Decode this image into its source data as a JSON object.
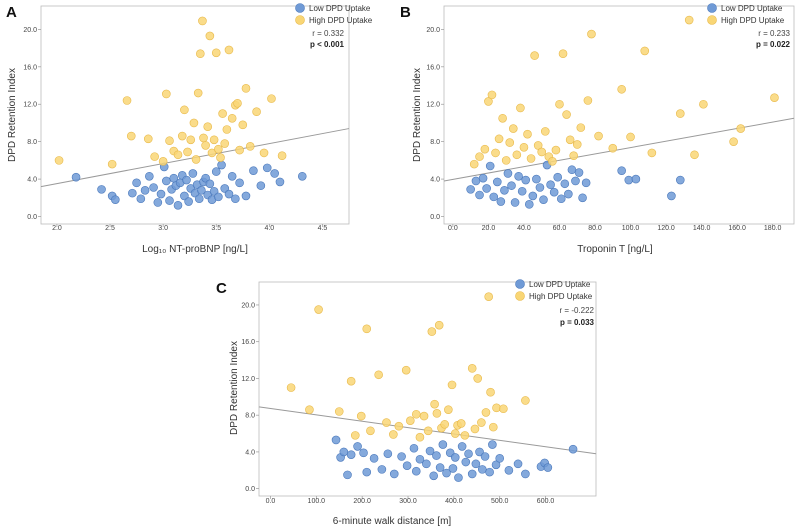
{
  "colors": {
    "low": "#6f9ad6",
    "low_stroke": "#4a78bb",
    "high": "#f9d675",
    "high_stroke": "#e8b94a",
    "regression": "#9a9a9a"
  },
  "chart_data": [
    {
      "type": "scatter",
      "panel_label": "A",
      "xlabel": "Log₁₀ NT-proBNP [ng/L]",
      "ylabel": "DPD Retention Index",
      "xlim": [
        1.85,
        4.75
      ],
      "ylim": [
        -0.8,
        22.5
      ],
      "xticks": [
        2.0,
        2.5,
        3.0,
        3.5,
        4.0,
        4.5
      ],
      "xtick_labels": [
        "2.0",
        "2.5",
        "3.0",
        "3.5",
        "4.0",
        "4.5"
      ],
      "yticks": [
        0,
        4,
        8,
        12,
        16,
        20
      ],
      "ytick_labels": [
        "0.0",
        "4.0",
        "8.0",
        "12.0",
        "16.0",
        "20.0"
      ],
      "legend": [
        "Low  DPD Uptake",
        "High DPD Uptake"
      ],
      "stats": {
        "r": "r = 0.332",
        "p": "p < 0.001"
      },
      "regression": {
        "x": [
          1.85,
          4.75
        ],
        "y": [
          3.2,
          9.4
        ]
      },
      "series": [
        {
          "name": "Low  DPD Uptake",
          "x": [
            2.18,
            2.42,
            2.52,
            2.55,
            2.71,
            2.75,
            2.79,
            2.83,
            2.87,
            2.91,
            2.95,
            2.98,
            3.01,
            3.03,
            3.06,
            3.08,
            3.1,
            3.12,
            3.14,
            3.16,
            3.18,
            3.2,
            3.22,
            3.24,
            3.26,
            3.28,
            3.3,
            3.32,
            3.34,
            3.36,
            3.38,
            3.4,
            3.42,
            3.44,
            3.46,
            3.48,
            3.5,
            3.52,
            3.55,
            3.58,
            3.62,
            3.65,
            3.68,
            3.72,
            3.78,
            3.85,
            3.92,
            3.98,
            4.05,
            4.1,
            4.31
          ],
          "y": [
            4.2,
            2.9,
            2.2,
            1.8,
            2.5,
            3.6,
            1.9,
            2.8,
            4.3,
            3.1,
            1.5,
            2.4,
            5.3,
            3.8,
            1.7,
            2.9,
            4.1,
            3.3,
            1.2,
            3.6,
            4.4,
            2.2,
            3.9,
            1.6,
            3.0,
            4.6,
            2.5,
            3.4,
            1.9,
            2.8,
            3.7,
            4.1,
            2.3,
            3.5,
            1.8,
            2.7,
            4.8,
            2.1,
            5.5,
            3.0,
            2.4,
            4.3,
            1.9,
            3.6,
            2.2,
            4.9,
            3.3,
            5.2,
            4.6,
            3.7,
            4.3
          ]
        },
        {
          "name": "High DPD Uptake",
          "x": [
            2.02,
            2.52,
            2.66,
            2.7,
            2.86,
            2.92,
            3.0,
            3.03,
            3.06,
            3.1,
            3.14,
            3.18,
            3.2,
            3.23,
            3.26,
            3.29,
            3.31,
            3.33,
            3.35,
            3.37,
            3.38,
            3.4,
            3.42,
            3.44,
            3.46,
            3.48,
            3.5,
            3.52,
            3.54,
            3.56,
            3.58,
            3.6,
            3.62,
            3.65,
            3.68,
            3.7,
            3.72,
            3.75,
            3.78,
            3.82,
            3.88,
            3.95,
            4.02,
            4.12
          ],
          "y": [
            6.0,
            5.6,
            12.4,
            8.6,
            8.3,
            6.4,
            5.9,
            13.1,
            8.1,
            7.0,
            6.6,
            8.6,
            11.4,
            6.9,
            8.2,
            10.0,
            6.1,
            13.2,
            17.4,
            20.9,
            8.4,
            7.6,
            9.6,
            19.3,
            6.8,
            8.2,
            17.5,
            7.2,
            6.3,
            11.0,
            7.8,
            9.3,
            17.8,
            10.5,
            11.9,
            12.1,
            7.1,
            9.8,
            13.7,
            7.5,
            11.2,
            6.8,
            12.6,
            6.5
          ]
        }
      ]
    },
    {
      "type": "scatter",
      "panel_label": "B",
      "xlabel": "Troponin T [ng/L]",
      "ylabel": "DPD Retention Index",
      "xlim": [
        -5,
        192
      ],
      "ylim": [
        -0.8,
        22.5
      ],
      "xticks": [
        0,
        20,
        40,
        60,
        80,
        100,
        120,
        140,
        160,
        180
      ],
      "xtick_labels": [
        "0.0",
        "20.0",
        "40.0",
        "60.0",
        "80.0",
        "100.0",
        "120.0",
        "140.0",
        "160.0",
        "180.0"
      ],
      "yticks": [
        0,
        4,
        8,
        12,
        16,
        20
      ],
      "ytick_labels": [
        "0.0",
        "4.0",
        "8.0",
        "12.0",
        "16.0",
        "20.0"
      ],
      "legend": [
        "Low  DPD Uptake",
        "High DPD Uptake"
      ],
      "stats": {
        "r": "r = 0.233",
        "p": "p = 0.022"
      },
      "regression": {
        "x": [
          -5,
          192
        ],
        "y": [
          3.8,
          10.5
        ]
      },
      "series": [
        {
          "name": "Low  DPD Uptake",
          "x": [
            10,
            13,
            15,
            17,
            19,
            21,
            23,
            25,
            27,
            29,
            31,
            33,
            35,
            37,
            39,
            41,
            43,
            45,
            47,
            49,
            51,
            53,
            55,
            57,
            59,
            61,
            63,
            65,
            67,
            69,
            71,
            73,
            75,
            95,
            99,
            103,
            123,
            128
          ],
          "y": [
            2.9,
            3.8,
            2.3,
            4.1,
            3.0,
            5.4,
            2.1,
            3.7,
            1.6,
            2.8,
            4.6,
            3.3,
            1.5,
            4.3,
            2.7,
            3.9,
            1.3,
            2.2,
            4.0,
            3.1,
            1.8,
            5.5,
            3.4,
            2.6,
            4.2,
            1.9,
            3.5,
            2.4,
            5.0,
            3.8,
            4.7,
            2.0,
            3.6,
            4.9,
            3.9,
            4.0,
            2.2,
            3.9
          ]
        },
        {
          "name": "High DPD Uptake",
          "x": [
            12,
            15,
            18,
            20,
            22,
            24,
            26,
            28,
            30,
            32,
            34,
            36,
            38,
            40,
            42,
            44,
            46,
            48,
            50,
            52,
            54,
            56,
            58,
            60,
            62,
            64,
            66,
            68,
            70,
            72,
            76,
            78,
            82,
            90,
            95,
            100,
            108,
            112,
            128,
            133,
            136,
            141,
            158,
            162,
            181
          ],
          "y": [
            5.6,
            6.4,
            7.2,
            12.3,
            13.0,
            6.8,
            8.3,
            10.5,
            6.0,
            7.9,
            9.4,
            6.6,
            11.6,
            7.4,
            8.8,
            6.2,
            17.2,
            7.6,
            6.9,
            9.1,
            6.4,
            5.9,
            7.1,
            12.0,
            17.4,
            10.9,
            8.2,
            6.5,
            7.7,
            9.5,
            12.4,
            19.5,
            8.6,
            7.3,
            13.6,
            8.5,
            17.7,
            6.8,
            11.0,
            21.0,
            6.6,
            12.0,
            8.0,
            9.4,
            12.7
          ]
        }
      ]
    },
    {
      "type": "scatter",
      "panel_label": "C",
      "xlabel": "6-minute walk distance [m]",
      "ylabel": "DPD Retention Index",
      "xlim": [
        -25,
        710
      ],
      "ylim": [
        -0.8,
        22.5
      ],
      "xticks": [
        0,
        100,
        200,
        300,
        400,
        500,
        600
      ],
      "xtick_labels": [
        "0.0",
        "100.0",
        "200.0",
        "300.0",
        "400.0",
        "500.0",
        "600.0"
      ],
      "yticks": [
        0,
        4,
        8,
        12,
        16,
        20
      ],
      "ytick_labels": [
        "0.0",
        "4.0",
        "8.0",
        "12.0",
        "16.0",
        "20.0"
      ],
      "legend": [
        "Low  DPD Uptake",
        "High DPD Uptake"
      ],
      "stats": {
        "r": "r = -0.222",
        "p": "p =  0.033"
      },
      "regression": {
        "x": [
          -25,
          710
        ],
        "y": [
          8.9,
          3.8
        ]
      },
      "series": [
        {
          "name": "Low  DPD Uptake",
          "x": [
            143,
            153,
            160,
            168,
            176,
            190,
            203,
            210,
            226,
            243,
            256,
            270,
            286,
            298,
            313,
            318,
            326,
            340,
            348,
            356,
            362,
            370,
            376,
            384,
            392,
            398,
            403,
            410,
            418,
            426,
            432,
            440,
            448,
            456,
            462,
            468,
            478,
            484,
            492,
            500,
            520,
            540,
            556,
            590,
            598,
            605,
            660
          ],
          "y": [
            5.3,
            3.4,
            4.0,
            1.5,
            3.7,
            4.6,
            3.9,
            1.8,
            3.3,
            2.1,
            3.8,
            1.6,
            3.5,
            2.5,
            4.4,
            1.9,
            3.2,
            2.7,
            4.1,
            1.4,
            3.6,
            2.3,
            4.8,
            1.7,
            3.9,
            2.2,
            3.4,
            1.2,
            4.6,
            2.9,
            3.8,
            1.6,
            2.7,
            4.0,
            2.1,
            3.5,
            1.8,
            4.8,
            2.6,
            3.3,
            2.0,
            2.7,
            1.6,
            2.4,
            2.8,
            2.3,
            4.3
          ]
        },
        {
          "name": "High DPD Uptake",
          "x": [
            45,
            85,
            105,
            150,
            176,
            185,
            198,
            210,
            218,
            236,
            253,
            268,
            280,
            296,
            305,
            318,
            326,
            335,
            344,
            352,
            358,
            363,
            368,
            373,
            380,
            388,
            396,
            403,
            408,
            416,
            424,
            440,
            446,
            452,
            460,
            470,
            476,
            480,
            486,
            493,
            508,
            556
          ],
          "y": [
            11.0,
            8.6,
            19.5,
            8.4,
            11.7,
            5.8,
            7.9,
            17.4,
            6.3,
            12.4,
            7.2,
            5.9,
            6.8,
            12.9,
            7.4,
            8.1,
            5.6,
            7.9,
            6.3,
            17.1,
            9.2,
            8.2,
            17.8,
            6.6,
            7.0,
            8.6,
            11.3,
            6.0,
            6.9,
            7.1,
            5.8,
            13.1,
            6.5,
            12.0,
            7.2,
            8.3,
            20.9,
            10.5,
            6.7,
            8.8,
            8.7,
            9.6
          ]
        }
      ]
    }
  ]
}
